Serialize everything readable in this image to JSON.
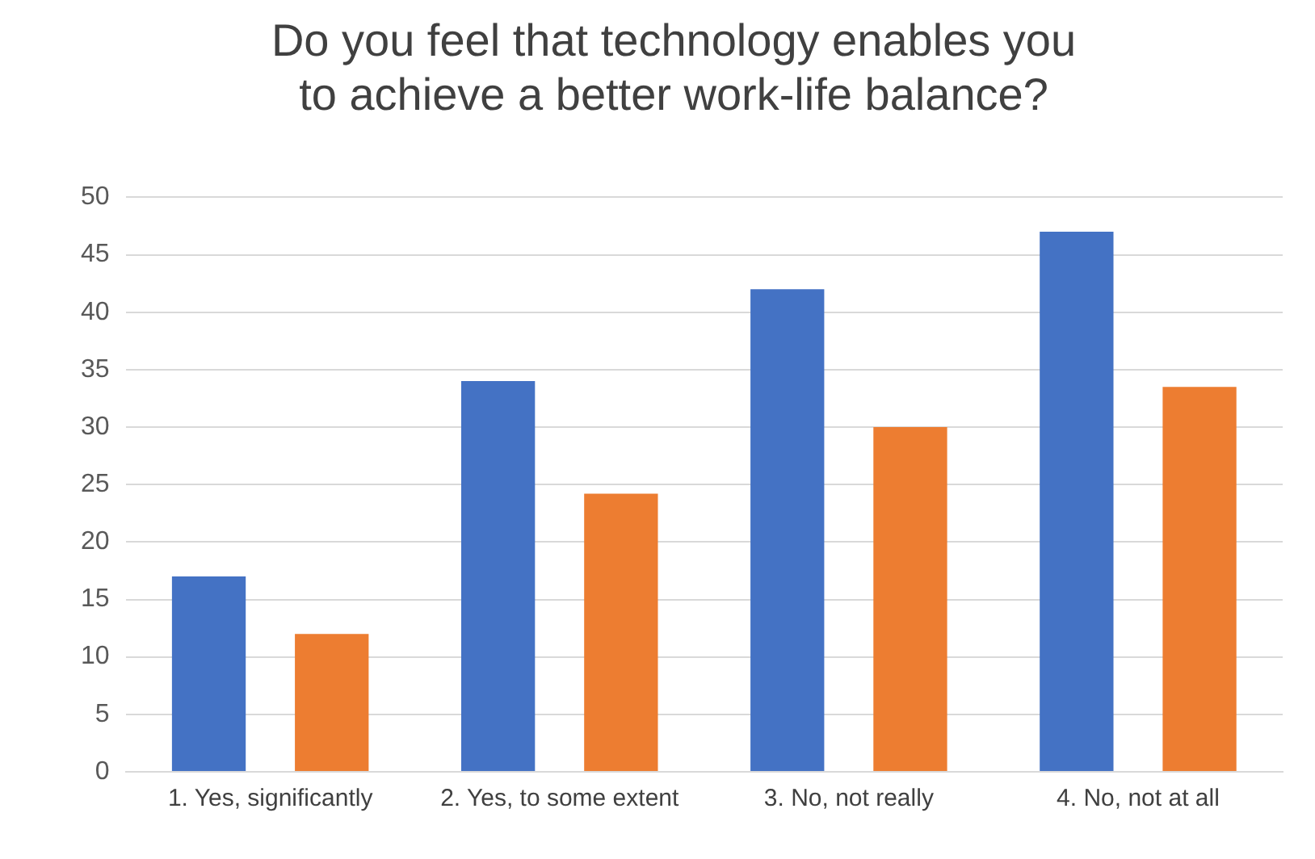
{
  "chart_data": {
    "type": "bar",
    "title": "Do you feel that technology enables you\nto achieve a better work-life balance?",
    "categories": [
      "1. Yes, significantly",
      "2. Yes, to some extent",
      "3. No, not really",
      "4. No, not at all"
    ],
    "series": [
      {
        "color": "#4472c4",
        "values": [
          17,
          34,
          42,
          47
        ]
      },
      {
        "color": "#ed7d31",
        "values": [
          12,
          24.2,
          30,
          33.5
        ]
      }
    ],
    "ylim": [
      0,
      50
    ],
    "yticks": [
      0,
      5,
      10,
      15,
      20,
      25,
      30,
      35,
      40,
      45,
      50
    ],
    "grid": "y",
    "legend": false
  }
}
